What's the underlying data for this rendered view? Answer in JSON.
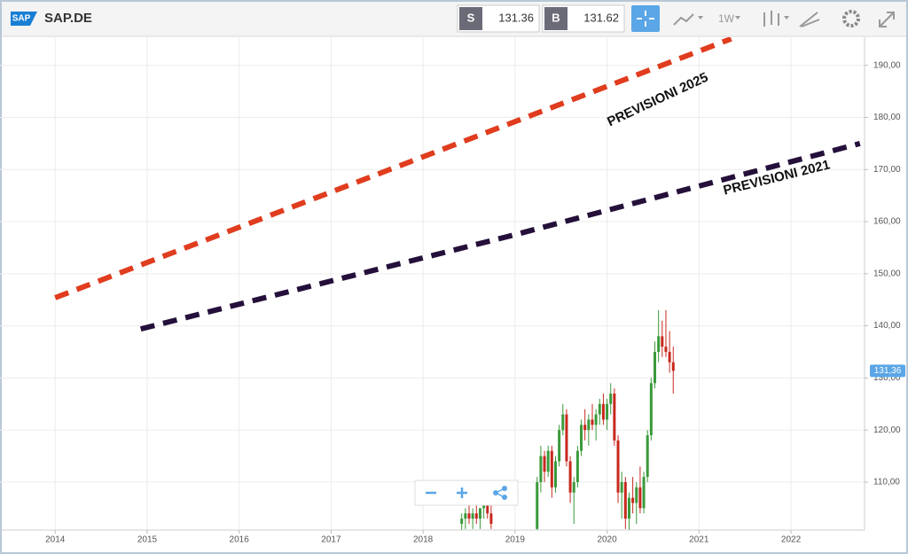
{
  "toolbar": {
    "logo": "SAP",
    "symbol": "SAP.DE",
    "sell_label": "S",
    "sell": "131.36",
    "buy_label": "B",
    "buy": "131.62",
    "interval": "1W"
  },
  "chart_data": {
    "type": "candlestick",
    "xlim": [
      2013.4,
      2022.8
    ],
    "xticks": [
      2014,
      2015,
      2016,
      2017,
      2018,
      2019,
      2020,
      2021,
      2022
    ],
    "ylim": [
      100.8,
      195.4
    ],
    "yticks": [
      {
        "value": 110,
        "label": "110,00"
      },
      {
        "value": 120,
        "label": "120,00"
      },
      {
        "value": 130,
        "label": "130,00"
      },
      {
        "value": 140,
        "label": "140,00"
      },
      {
        "value": 150,
        "label": "150,00"
      },
      {
        "value": 160,
        "label": "160,00"
      },
      {
        "value": 170,
        "label": "170,00"
      },
      {
        "value": 180,
        "label": "180,00"
      },
      {
        "value": 190,
        "label": "190,00"
      }
    ],
    "grid": true,
    "up_color": "#3a9a3a",
    "down_color": "#c8281e",
    "last_price": {
      "value": 131.36,
      "label": "131,36"
    },
    "candles": {
      "x": [
        2018.42,
        2018.46,
        2018.5,
        2018.54,
        2018.58,
        2018.62,
        2018.66,
        2018.7,
        2018.74,
        2019.24,
        2019.28,
        2019.32,
        2019.36,
        2019.4,
        2019.44,
        2019.48,
        2019.52,
        2019.56,
        2019.6,
        2019.64,
        2019.68,
        2019.72,
        2019.76,
        2019.8,
        2019.84,
        2019.88,
        2019.92,
        2019.96,
        2020.0,
        2020.04,
        2020.08,
        2020.12,
        2020.16,
        2020.2,
        2020.24,
        2020.28,
        2020.32,
        2020.36,
        2020.4,
        2020.44,
        2020.48,
        2020.52,
        2020.56,
        2020.6,
        2020.64,
        2020.68,
        2020.72
      ],
      "open": [
        102,
        103,
        104,
        103,
        104,
        103,
        105,
        106,
        104,
        101,
        110,
        115,
        112,
        116,
        109,
        114,
        120,
        123,
        114,
        108,
        110,
        116,
        121,
        120,
        122,
        121,
        123,
        125,
        122,
        125,
        127,
        118,
        108,
        110,
        103,
        107,
        106,
        109,
        105,
        111,
        119,
        129,
        135,
        138,
        136,
        135,
        133
      ],
      "high": [
        104,
        105,
        106,
        105,
        106,
        105,
        108,
        108,
        106,
        111,
        117,
        116,
        117,
        117,
        115,
        121,
        125,
        124,
        115,
        111,
        117,
        122,
        124,
        123,
        125,
        124,
        126,
        127,
        126,
        129,
        128,
        119,
        112,
        111,
        108,
        111,
        110,
        113,
        112,
        120,
        130,
        137,
        143,
        141,
        143,
        139,
        136
      ],
      "low": [
        100,
        101,
        102,
        101,
        102,
        101,
        103,
        103,
        101,
        99,
        108,
        110,
        111,
        107,
        108,
        113,
        119,
        113,
        106,
        102,
        109,
        115,
        118,
        117,
        120,
        118,
        121,
        121,
        120,
        123,
        117,
        106,
        103,
        101,
        100,
        104,
        102,
        104,
        104,
        110,
        118,
        128,
        133,
        134,
        134,
        131,
        127
      ],
      "close": [
        103,
        104,
        103,
        104,
        103,
        105,
        106,
        104,
        102,
        110,
        115,
        112,
        116,
        109,
        114,
        120,
        123,
        114,
        108,
        110,
        116,
        121,
        120,
        122,
        121,
        123,
        125,
        122,
        125,
        127,
        118,
        108,
        110,
        103,
        107,
        106,
        109,
        105,
        111,
        119,
        129,
        135,
        138,
        136,
        135,
        133,
        131.36
      ]
    },
    "series": [
      {
        "name": "PREVISIONI 2025",
        "color": "#e03c1e",
        "x": [
          2014,
          2021.35
        ],
        "values": [
          145.4,
          195.1
        ]
      },
      {
        "name": "PREVISIONI 2021",
        "color": "#24103a",
        "x": [
          2014.93,
          2019,
          2022.75
        ],
        "values": [
          139.4,
          157.5,
          175
        ]
      }
    ]
  }
}
